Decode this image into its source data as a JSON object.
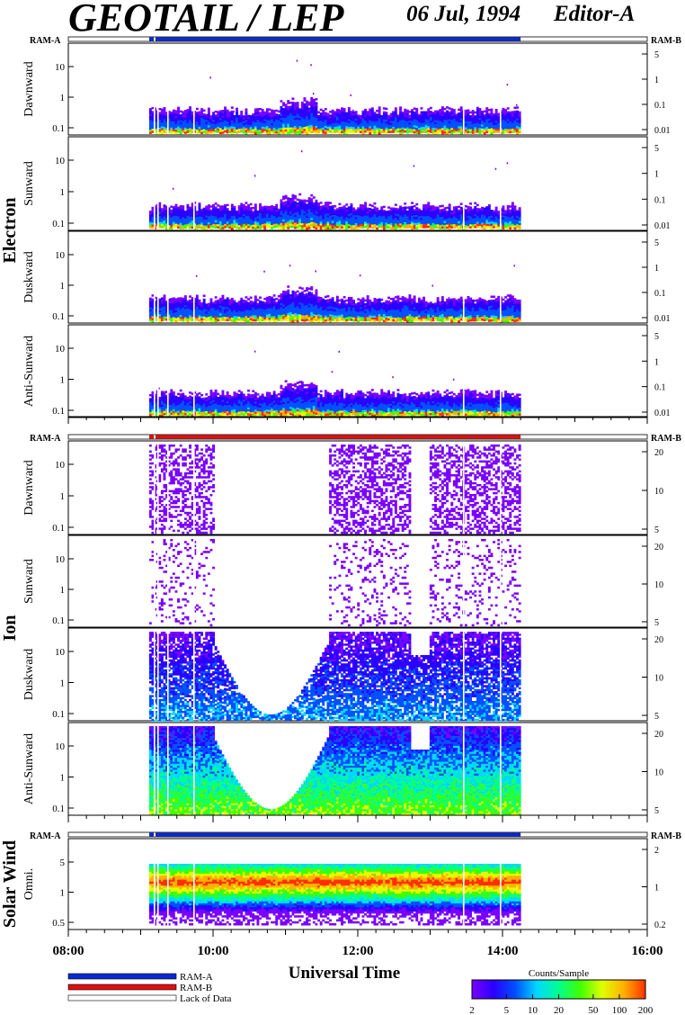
{
  "header": {
    "instrument": "GEOTAIL / LEP",
    "date": "06 Jul, 1994",
    "editor": "Editor-A"
  },
  "colors": {
    "ram_a": "#0a2ad0",
    "ram_b": "#e01010",
    "colorbar": [
      "#7a00ff",
      "#2a00ff",
      "#0050ff",
      "#00d8ff",
      "#00ff90",
      "#40ff00",
      "#e0ff00",
      "#ffb000",
      "#ff3000"
    ]
  },
  "chart_data": {
    "type": "heatmap",
    "x_axis": {
      "label": "Universal Time",
      "range": [
        "08:00",
        "16:00"
      ],
      "tick_labels": [
        "08:00",
        "10:00",
        "12:00",
        "14:00",
        "16:00"
      ],
      "data_coverage": [
        "09:07",
        "14:15"
      ]
    },
    "groups": [
      {
        "name": "Electron",
        "ram_left": "RAM-A",
        "ram_right": "RAM-B",
        "ram_bar": "RAM-A",
        "panels": [
          {
            "label": "Dawnward",
            "left_ticks": [
              "10",
              "1",
              "0.1"
            ],
            "right_ticks": [
              "5",
              "1",
              "0.1",
              "0.01"
            ]
          },
          {
            "label": "Sunward",
            "left_ticks": [
              "10",
              "1",
              "0.1"
            ],
            "right_ticks": [
              "5",
              "1",
              "0.1",
              "0.01"
            ]
          },
          {
            "label": "Duskward",
            "left_ticks": [
              "10",
              "1",
              "0.1"
            ],
            "right_ticks": [
              "5",
              "1",
              "0.1",
              "0.01"
            ]
          },
          {
            "label": "Anti-Sunward",
            "left_ticks": [
              "10",
              "1",
              "0.1"
            ],
            "right_ticks": [
              "5",
              "1",
              "0.1",
              "0.01"
            ]
          }
        ]
      },
      {
        "name": "Ion",
        "ram_left": "RAM-A",
        "ram_right": "RAM-B",
        "ram_bar": "RAM-B",
        "panels": [
          {
            "label": "Dawnward",
            "left_ticks": [
              "10",
              "1",
              "0.1"
            ],
            "right_ticks": [
              "20",
              "10",
              "5"
            ]
          },
          {
            "label": "Sunward",
            "left_ticks": [
              "10",
              "1",
              "0.1"
            ],
            "right_ticks": [
              "20",
              "10",
              "5"
            ]
          },
          {
            "label": "Duskward",
            "left_ticks": [
              "10",
              "1",
              "0.1"
            ],
            "right_ticks": [
              "20",
              "10",
              "5"
            ]
          },
          {
            "label": "Anti-Sunward",
            "left_ticks": [
              "10",
              "1",
              "0.1"
            ],
            "right_ticks": [
              "20",
              "10",
              "5"
            ]
          }
        ]
      },
      {
        "name": "Solar Wind",
        "ram_left": "RAM-A",
        "ram_right": "RAM-B",
        "ram_bar": "RAM-A",
        "panels": [
          {
            "label": "Omni.",
            "left_ticks": [
              "5",
              "1",
              "0.5"
            ],
            "right_ticks": [
              "2",
              "1",
              "0.2"
            ]
          }
        ]
      }
    ],
    "legend": {
      "items": [
        {
          "label": "RAM-A",
          "color": "#0a2ad0"
        },
        {
          "label": "RAM-B",
          "color": "#e01010"
        },
        {
          "label": "Lack of Data",
          "color": "#ffffff"
        }
      ]
    },
    "colorbar": {
      "title": "Counts/Sample",
      "ticks": [
        "2",
        "5",
        "10",
        "20",
        "50",
        "100",
        "200"
      ]
    }
  }
}
